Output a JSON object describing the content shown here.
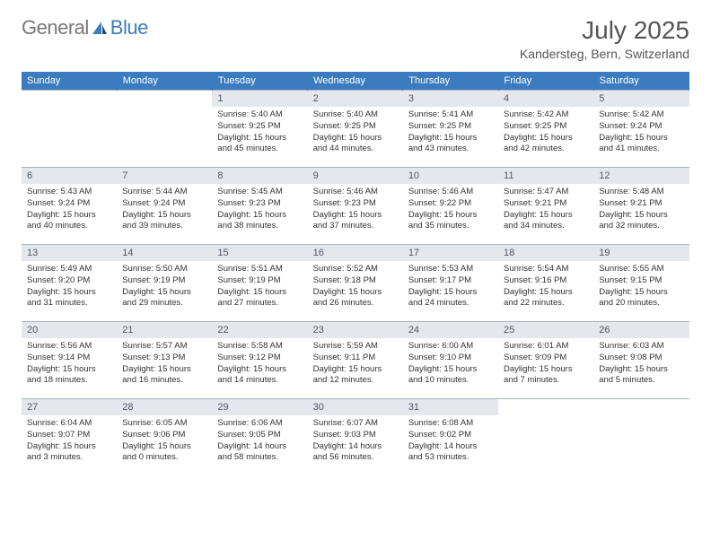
{
  "logo": {
    "part1": "General",
    "part2": "Blue"
  },
  "title": "July 2025",
  "location": "Kandersteg, Bern, Switzerland",
  "colors": {
    "header_bg": "#3b7bbf",
    "header_text": "#ffffff",
    "daynum_bg": "#e4e8ec",
    "cell_border": "#a9b4c0",
    "body_text": "#333333"
  },
  "weekdays": [
    "Sunday",
    "Monday",
    "Tuesday",
    "Wednesday",
    "Thursday",
    "Friday",
    "Saturday"
  ],
  "weeks": [
    [
      null,
      null,
      {
        "n": "1",
        "sr": "Sunrise: 5:40 AM",
        "ss": "Sunset: 9:25 PM",
        "d1": "Daylight: 15 hours",
        "d2": "and 45 minutes."
      },
      {
        "n": "2",
        "sr": "Sunrise: 5:40 AM",
        "ss": "Sunset: 9:25 PM",
        "d1": "Daylight: 15 hours",
        "d2": "and 44 minutes."
      },
      {
        "n": "3",
        "sr": "Sunrise: 5:41 AM",
        "ss": "Sunset: 9:25 PM",
        "d1": "Daylight: 15 hours",
        "d2": "and 43 minutes."
      },
      {
        "n": "4",
        "sr": "Sunrise: 5:42 AM",
        "ss": "Sunset: 9:25 PM",
        "d1": "Daylight: 15 hours",
        "d2": "and 42 minutes."
      },
      {
        "n": "5",
        "sr": "Sunrise: 5:42 AM",
        "ss": "Sunset: 9:24 PM",
        "d1": "Daylight: 15 hours",
        "d2": "and 41 minutes."
      }
    ],
    [
      {
        "n": "6",
        "sr": "Sunrise: 5:43 AM",
        "ss": "Sunset: 9:24 PM",
        "d1": "Daylight: 15 hours",
        "d2": "and 40 minutes."
      },
      {
        "n": "7",
        "sr": "Sunrise: 5:44 AM",
        "ss": "Sunset: 9:24 PM",
        "d1": "Daylight: 15 hours",
        "d2": "and 39 minutes."
      },
      {
        "n": "8",
        "sr": "Sunrise: 5:45 AM",
        "ss": "Sunset: 9:23 PM",
        "d1": "Daylight: 15 hours",
        "d2": "and 38 minutes."
      },
      {
        "n": "9",
        "sr": "Sunrise: 5:46 AM",
        "ss": "Sunset: 9:23 PM",
        "d1": "Daylight: 15 hours",
        "d2": "and 37 minutes."
      },
      {
        "n": "10",
        "sr": "Sunrise: 5:46 AM",
        "ss": "Sunset: 9:22 PM",
        "d1": "Daylight: 15 hours",
        "d2": "and 35 minutes."
      },
      {
        "n": "11",
        "sr": "Sunrise: 5:47 AM",
        "ss": "Sunset: 9:21 PM",
        "d1": "Daylight: 15 hours",
        "d2": "and 34 minutes."
      },
      {
        "n": "12",
        "sr": "Sunrise: 5:48 AM",
        "ss": "Sunset: 9:21 PM",
        "d1": "Daylight: 15 hours",
        "d2": "and 32 minutes."
      }
    ],
    [
      {
        "n": "13",
        "sr": "Sunrise: 5:49 AM",
        "ss": "Sunset: 9:20 PM",
        "d1": "Daylight: 15 hours",
        "d2": "and 31 minutes."
      },
      {
        "n": "14",
        "sr": "Sunrise: 5:50 AM",
        "ss": "Sunset: 9:19 PM",
        "d1": "Daylight: 15 hours",
        "d2": "and 29 minutes."
      },
      {
        "n": "15",
        "sr": "Sunrise: 5:51 AM",
        "ss": "Sunset: 9:19 PM",
        "d1": "Daylight: 15 hours",
        "d2": "and 27 minutes."
      },
      {
        "n": "16",
        "sr": "Sunrise: 5:52 AM",
        "ss": "Sunset: 9:18 PM",
        "d1": "Daylight: 15 hours",
        "d2": "and 26 minutes."
      },
      {
        "n": "17",
        "sr": "Sunrise: 5:53 AM",
        "ss": "Sunset: 9:17 PM",
        "d1": "Daylight: 15 hours",
        "d2": "and 24 minutes."
      },
      {
        "n": "18",
        "sr": "Sunrise: 5:54 AM",
        "ss": "Sunset: 9:16 PM",
        "d1": "Daylight: 15 hours",
        "d2": "and 22 minutes."
      },
      {
        "n": "19",
        "sr": "Sunrise: 5:55 AM",
        "ss": "Sunset: 9:15 PM",
        "d1": "Daylight: 15 hours",
        "d2": "and 20 minutes."
      }
    ],
    [
      {
        "n": "20",
        "sr": "Sunrise: 5:56 AM",
        "ss": "Sunset: 9:14 PM",
        "d1": "Daylight: 15 hours",
        "d2": "and 18 minutes."
      },
      {
        "n": "21",
        "sr": "Sunrise: 5:57 AM",
        "ss": "Sunset: 9:13 PM",
        "d1": "Daylight: 15 hours",
        "d2": "and 16 minutes."
      },
      {
        "n": "22",
        "sr": "Sunrise: 5:58 AM",
        "ss": "Sunset: 9:12 PM",
        "d1": "Daylight: 15 hours",
        "d2": "and 14 minutes."
      },
      {
        "n": "23",
        "sr": "Sunrise: 5:59 AM",
        "ss": "Sunset: 9:11 PM",
        "d1": "Daylight: 15 hours",
        "d2": "and 12 minutes."
      },
      {
        "n": "24",
        "sr": "Sunrise: 6:00 AM",
        "ss": "Sunset: 9:10 PM",
        "d1": "Daylight: 15 hours",
        "d2": "and 10 minutes."
      },
      {
        "n": "25",
        "sr": "Sunrise: 6:01 AM",
        "ss": "Sunset: 9:09 PM",
        "d1": "Daylight: 15 hours",
        "d2": "and 7 minutes."
      },
      {
        "n": "26",
        "sr": "Sunrise: 6:03 AM",
        "ss": "Sunset: 9:08 PM",
        "d1": "Daylight: 15 hours",
        "d2": "and 5 minutes."
      }
    ],
    [
      {
        "n": "27",
        "sr": "Sunrise: 6:04 AM",
        "ss": "Sunset: 9:07 PM",
        "d1": "Daylight: 15 hours",
        "d2": "and 3 minutes."
      },
      {
        "n": "28",
        "sr": "Sunrise: 6:05 AM",
        "ss": "Sunset: 9:06 PM",
        "d1": "Daylight: 15 hours",
        "d2": "and 0 minutes."
      },
      {
        "n": "29",
        "sr": "Sunrise: 6:06 AM",
        "ss": "Sunset: 9:05 PM",
        "d1": "Daylight: 14 hours",
        "d2": "and 58 minutes."
      },
      {
        "n": "30",
        "sr": "Sunrise: 6:07 AM",
        "ss": "Sunset: 9:03 PM",
        "d1": "Daylight: 14 hours",
        "d2": "and 56 minutes."
      },
      {
        "n": "31",
        "sr": "Sunrise: 6:08 AM",
        "ss": "Sunset: 9:02 PM",
        "d1": "Daylight: 14 hours",
        "d2": "and 53 minutes."
      },
      null,
      null
    ]
  ]
}
